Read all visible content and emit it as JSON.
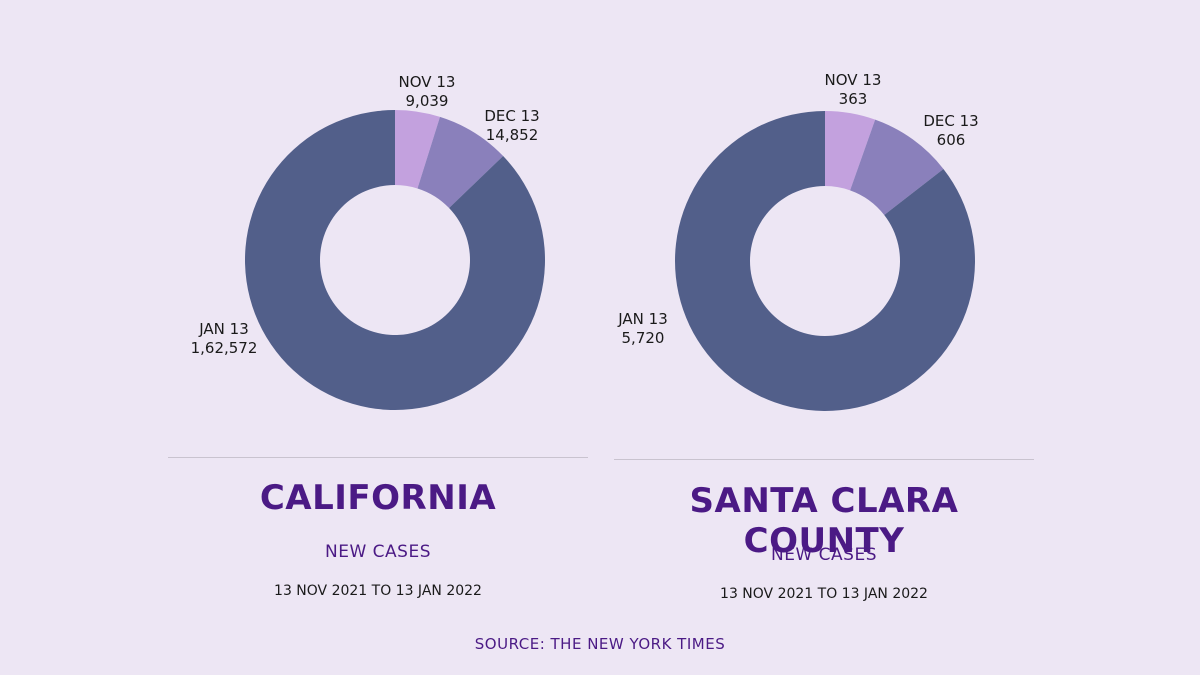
{
  "chart_data": [
    {
      "type": "pie",
      "title": "CALIFORNIA",
      "subtitle": "NEW CASES",
      "date_range": "13 NOV 2021 TO 13 JAN 2022",
      "categories": [
        "NOV 13",
        "DEC 13",
        "JAN 13"
      ],
      "values": [
        9039,
        14852,
        162572
      ],
      "value_labels": [
        "9,039",
        "14,852",
        "1,62,572"
      ],
      "colors": [
        "#c3a1de",
        "#8a80bb",
        "#525f8a"
      ],
      "donut": true
    },
    {
      "type": "pie",
      "title": "SANTA CLARA COUNTY",
      "subtitle": "NEW CASES",
      "date_range": "13 NOV 2021 TO 13 JAN 2022",
      "categories": [
        "NOV 13",
        "DEC 13",
        "JAN 13"
      ],
      "values": [
        363,
        606,
        5720
      ],
      "value_labels": [
        "363",
        "606",
        "5,720"
      ],
      "colors": [
        "#c3a1de",
        "#8a80bb",
        "#525f8a"
      ],
      "donut": true
    }
  ],
  "source": "SOURCE: THE NEW YORK TIMES",
  "colors": {
    "background": "#ede6f4",
    "title": "#4b1a85"
  }
}
